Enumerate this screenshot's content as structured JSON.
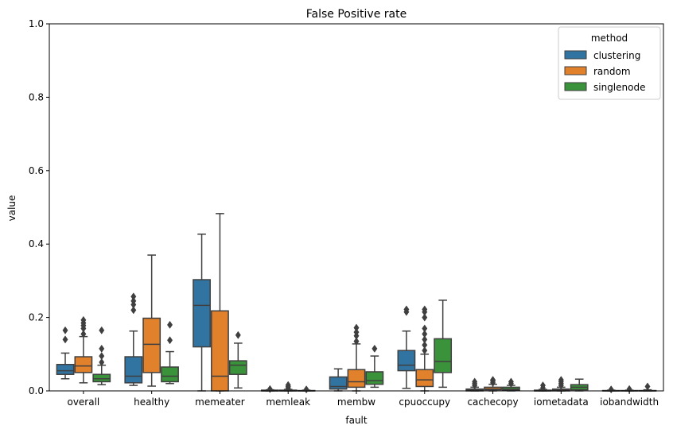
{
  "chart_data": {
    "type": "box",
    "title": "False Positive rate",
    "xlabel": "fault",
    "ylabel": "value",
    "ylim": [
      0,
      1.0
    ],
    "yticks": [
      "0.0",
      "0.2",
      "0.4",
      "0.6",
      "0.8",
      "1.0"
    ],
    "categories": [
      "overall",
      "healthy",
      "memeater",
      "memleak",
      "membw",
      "cpuoccupy",
      "cachecopy",
      "iometadata",
      "iobandwidth"
    ],
    "legend": {
      "title": "method",
      "position": "top-right"
    },
    "series": [
      {
        "name": "clustering",
        "color": "#3274a1",
        "boxes": [
          {
            "low": 0.033,
            "q1": 0.045,
            "median": 0.055,
            "q3": 0.072,
            "high": 0.103,
            "outliers": [
              0.14,
              0.165
            ]
          },
          {
            "low": 0.015,
            "q1": 0.022,
            "median": 0.04,
            "q3": 0.093,
            "high": 0.163,
            "outliers": [
              0.22,
              0.235,
              0.245,
              0.257
            ]
          },
          {
            "low": 0.0,
            "q1": 0.12,
            "median": 0.233,
            "q3": 0.303,
            "high": 0.427,
            "outliers": []
          },
          {
            "low": 0.0,
            "q1": 0.0,
            "median": 0.0,
            "q3": 0.002,
            "high": 0.003,
            "outliers": [
              0.005
            ]
          },
          {
            "low": 0.0,
            "q1": 0.005,
            "median": 0.012,
            "q3": 0.038,
            "high": 0.06,
            "outliers": []
          },
          {
            "low": 0.007,
            "q1": 0.055,
            "median": 0.07,
            "q3": 0.11,
            "high": 0.163,
            "outliers": [
              0.215,
              0.222
            ]
          },
          {
            "low": 0.0,
            "q1": 0.0,
            "median": 0.002,
            "q3": 0.005,
            "high": 0.01,
            "outliers": [
              0.015,
              0.02,
              0.025
            ]
          },
          {
            "low": 0.0,
            "q1": 0.0,
            "median": 0.0,
            "q3": 0.002,
            "high": 0.004,
            "outliers": [
              0.008,
              0.015
            ]
          },
          {
            "low": 0.0,
            "q1": 0.0,
            "median": 0.0,
            "q3": 0.001,
            "high": 0.002,
            "outliers": [
              0.004
            ]
          }
        ]
      },
      {
        "name": "random",
        "color": "#e1812c",
        "boxes": [
          {
            "low": 0.022,
            "q1": 0.05,
            "median": 0.068,
            "q3": 0.093,
            "high": 0.148,
            "outliers": [
              0.155,
              0.17,
              0.178,
              0.185,
              0.193
            ]
          },
          {
            "low": 0.013,
            "q1": 0.05,
            "median": 0.127,
            "q3": 0.198,
            "high": 0.37,
            "outliers": []
          },
          {
            "low": 0.0,
            "q1": 0.0,
            "median": 0.04,
            "q3": 0.218,
            "high": 0.483,
            "outliers": []
          },
          {
            "low": 0.0,
            "q1": 0.0,
            "median": 0.0,
            "q3": 0.002,
            "high": 0.004,
            "outliers": [
              0.008,
              0.012,
              0.016
            ]
          },
          {
            "low": 0.0,
            "q1": 0.01,
            "median": 0.025,
            "q3": 0.058,
            "high": 0.128,
            "outliers": [
              0.135,
              0.15,
              0.16,
              0.172
            ]
          },
          {
            "low": 0.0,
            "q1": 0.012,
            "median": 0.03,
            "q3": 0.058,
            "high": 0.1,
            "outliers": [
              0.11,
              0.125,
              0.14,
              0.155,
              0.17,
              0.2,
              0.215,
              0.222
            ]
          },
          {
            "low": 0.0,
            "q1": 0.003,
            "median": 0.005,
            "q3": 0.01,
            "high": 0.018,
            "outliers": [
              0.022,
              0.027,
              0.03
            ]
          },
          {
            "low": 0.0,
            "q1": 0.0,
            "median": 0.002,
            "q3": 0.005,
            "high": 0.01,
            "outliers": [
              0.015,
              0.02,
              0.025,
              0.03
            ]
          },
          {
            "low": 0.0,
            "q1": 0.0,
            "median": 0.0,
            "q3": 0.001,
            "high": 0.002,
            "outliers": [
              0.005
            ]
          }
        ]
      },
      {
        "name": "singlenode",
        "color": "#3a923a",
        "boxes": [
          {
            "low": 0.017,
            "q1": 0.025,
            "median": 0.033,
            "q3": 0.045,
            "high": 0.07,
            "outliers": [
              0.078,
              0.095,
              0.115,
              0.165
            ]
          },
          {
            "low": 0.02,
            "q1": 0.025,
            "median": 0.04,
            "q3": 0.065,
            "high": 0.107,
            "outliers": [
              0.138,
              0.18
            ]
          },
          {
            "low": 0.008,
            "q1": 0.045,
            "median": 0.07,
            "q3": 0.082,
            "high": 0.13,
            "outliers": [
              0.152
            ]
          },
          {
            "low": 0.0,
            "q1": 0.0,
            "median": 0.0,
            "q3": 0.001,
            "high": 0.002,
            "outliers": [
              0.004
            ]
          },
          {
            "low": 0.01,
            "q1": 0.018,
            "median": 0.028,
            "q3": 0.052,
            "high": 0.095,
            "outliers": [
              0.115
            ]
          },
          {
            "low": 0.01,
            "q1": 0.05,
            "median": 0.08,
            "q3": 0.142,
            "high": 0.247,
            "outliers": []
          },
          {
            "low": 0.0,
            "q1": 0.002,
            "median": 0.005,
            "q3": 0.01,
            "high": 0.015,
            "outliers": [
              0.02,
              0.025
            ]
          },
          {
            "low": 0.0,
            "q1": 0.003,
            "median": 0.01,
            "q3": 0.017,
            "high": 0.032,
            "outliers": []
          },
          {
            "low": 0.0,
            "q1": 0.0,
            "median": 0.0,
            "q3": 0.001,
            "high": 0.003,
            "outliers": [
              0.012
            ]
          }
        ]
      }
    ]
  }
}
